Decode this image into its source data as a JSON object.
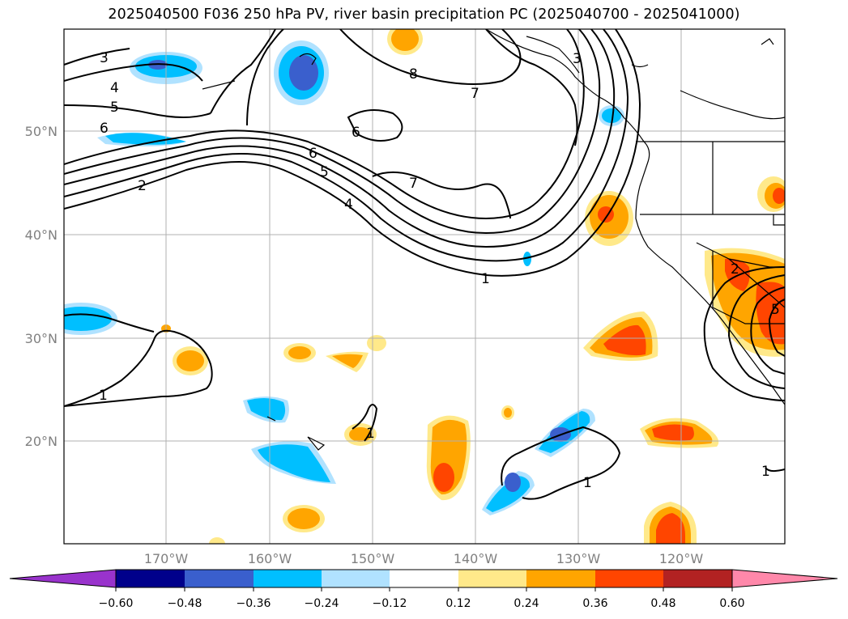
{
  "title": "2025040500 F036 250 hPa PV, river basin precipitation PC (2025040700 - 2025041000)",
  "axes": {
    "lat_labels": [
      "50°N",
      "40°N",
      "30°N",
      "20°N"
    ],
    "lon_labels": [
      "170°W",
      "160°W",
      "150°W",
      "140°W",
      "130°W",
      "120°W"
    ]
  },
  "contour_labels": [
    "3",
    "4",
    "5",
    "6",
    "2",
    "8",
    "7",
    "6",
    "6",
    "5",
    "4",
    "7",
    "1",
    "3",
    "1",
    "1",
    "1",
    "2",
    "5",
    "1"
  ],
  "colorbar": {
    "tick_labels": [
      "−0.60",
      "−0.48",
      "−0.36",
      "−0.24",
      "−0.12",
      "0.12",
      "0.24",
      "0.36",
      "0.48",
      "0.60"
    ],
    "colors": [
      "#9933cc",
      "#00008b",
      "#3a5fcd",
      "#00bfff",
      "#b0e2ff",
      "#ffffff",
      "#ffe98a",
      "#ffa500",
      "#ff4500",
      "#b22222",
      "#ff88aa"
    ]
  }
}
